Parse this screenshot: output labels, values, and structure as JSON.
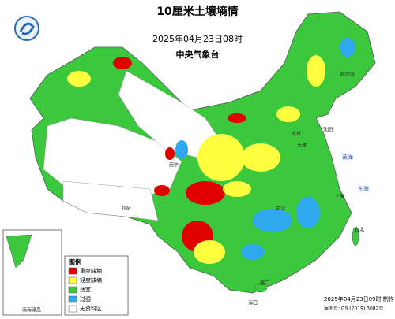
{
  "header": {
    "title": "10厘米土壤墒情",
    "time": "2025年04月23日08时",
    "agency": "中央气象台"
  },
  "legend": {
    "title": "图例",
    "items": [
      {
        "label": "重度缺墒",
        "color": "#e00000"
      },
      {
        "label": "轻度缺墒",
        "color": "#ffff40"
      },
      {
        "label": "适宜",
        "color": "#3cc83c"
      },
      {
        "label": "过湿",
        "color": "#2fa8f0"
      },
      {
        "label": "无资料区",
        "color": "#ffffff"
      }
    ]
  },
  "inset": {
    "label": "南海诸岛"
  },
  "places": [
    "北京",
    "天津",
    "沈阳",
    "哈尔滨",
    "上海",
    "武汉",
    "拉萨",
    "西宁",
    "澳门",
    "海口",
    "台北",
    "东海",
    "黄海"
  ],
  "footer": {
    "made": "2025年04月23日09时 制作",
    "approval": "审图号: GS (2019) 3082号"
  }
}
